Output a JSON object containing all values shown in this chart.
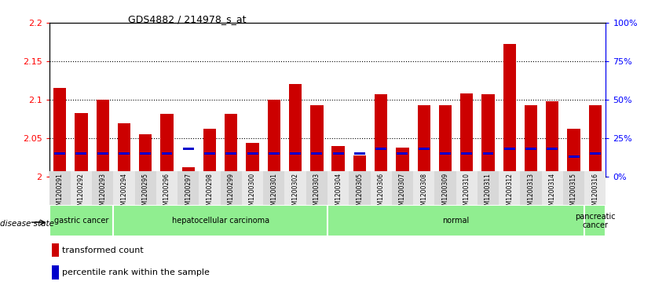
{
  "title": "GDS4882 / 214978_s_at",
  "samples": [
    "GSM1200291",
    "GSM1200292",
    "GSM1200293",
    "GSM1200294",
    "GSM1200295",
    "GSM1200296",
    "GSM1200297",
    "GSM1200298",
    "GSM1200299",
    "GSM1200300",
    "GSM1200301",
    "GSM1200302",
    "GSM1200303",
    "GSM1200304",
    "GSM1200305",
    "GSM1200306",
    "GSM1200307",
    "GSM1200308",
    "GSM1200309",
    "GSM1200310",
    "GSM1200311",
    "GSM1200312",
    "GSM1200313",
    "GSM1200314",
    "GSM1200315",
    "GSM1200316"
  ],
  "transformed_count": [
    2.115,
    2.083,
    2.1,
    2.069,
    2.055,
    2.082,
    2.012,
    2.062,
    2.082,
    2.044,
    2.1,
    2.12,
    2.093,
    2.04,
    2.028,
    2.107,
    2.038,
    2.093,
    2.093,
    2.108,
    2.107,
    2.173,
    2.093,
    2.098,
    2.062,
    2.093
  ],
  "percentile_rank": [
    15,
    15,
    15,
    15,
    15,
    15,
    18,
    15,
    15,
    15,
    15,
    15,
    15,
    15,
    15,
    18,
    15,
    18,
    15,
    15,
    15,
    18,
    18,
    18,
    13,
    15
  ],
  "groups": [
    {
      "label": "gastric cancer",
      "start": 0,
      "end": 3
    },
    {
      "label": "hepatocellular carcinoma",
      "start": 3,
      "end": 13
    },
    {
      "label": "normal",
      "start": 13,
      "end": 25
    },
    {
      "label": "pancreatic\ncancer",
      "start": 25,
      "end": 26
    }
  ],
  "ylim_left": [
    2.0,
    2.2
  ],
  "ylim_right": [
    0,
    100
  ],
  "yticks_left": [
    2.0,
    2.05,
    2.1,
    2.15,
    2.2
  ],
  "yticks_right": [
    0,
    25,
    50,
    75,
    100
  ],
  "bar_color": "#CC0000",
  "percentile_color": "#0000CC",
  "group_color": "#90EE90",
  "bar_width": 0.6,
  "disease_state_label": "disease state"
}
